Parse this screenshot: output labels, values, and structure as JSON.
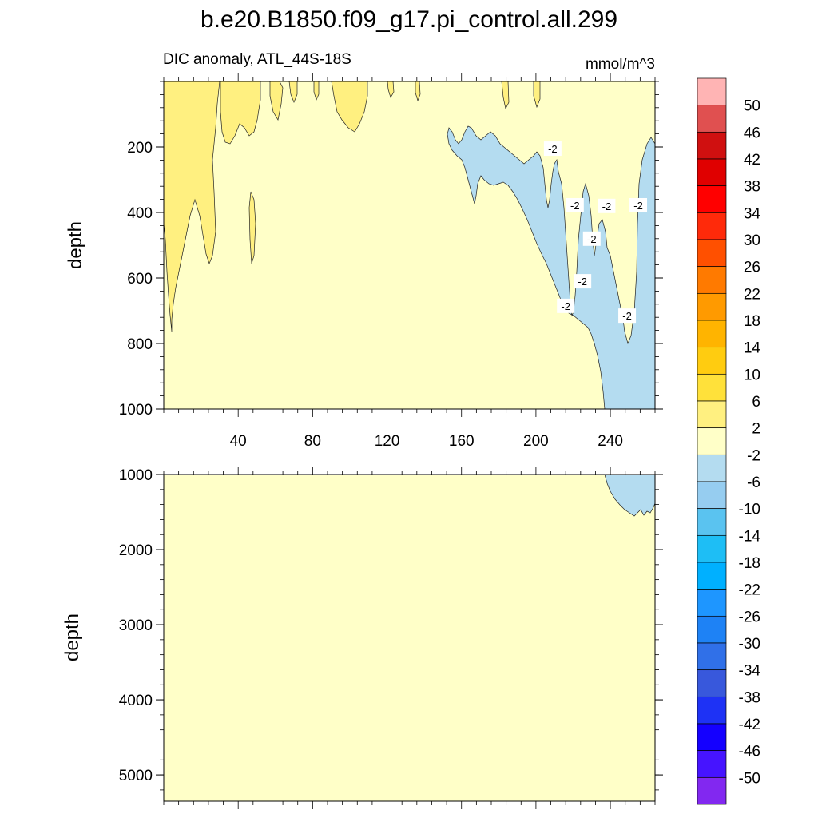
{
  "chart_data": {
    "type": "contour",
    "title": "b.e20.B1850.f09_g17.pi_control.all.299",
    "subtitle_left": "DIC anomaly, ATL_44S-18S",
    "subtitle_right": "mmol/m^3",
    "x_range": [
      0,
      264
    ],
    "panels": [
      {
        "name": "upper",
        "ylabel": "depth",
        "ylim": [
          1000,
          0
        ],
        "yticks": [
          200,
          400,
          600,
          800,
          1000
        ],
        "xticks": [
          40,
          80,
          120,
          160,
          200,
          240
        ],
        "xtick_labels": [
          "40",
          "80",
          "120",
          "160",
          "200",
          "240"
        ],
        "background_level": "-2 to 2",
        "contour_labels": [
          {
            "text": "-2",
            "x": 209,
            "y": 205
          },
          {
            "text": "-2",
            "x": 221,
            "y": 378
          },
          {
            "text": "-2",
            "x": 238,
            "y": 380
          },
          {
            "text": "-2",
            "x": 255,
            "y": 378
          },
          {
            "text": "-2",
            "x": 230,
            "y": 480
          },
          {
            "text": "-2",
            "x": 225,
            "y": 610
          },
          {
            "text": "-2",
            "x": 216,
            "y": 685
          },
          {
            "text": "-2",
            "x": 249,
            "y": 715
          }
        ]
      },
      {
        "name": "lower",
        "ylabel": "depth",
        "ylim": [
          5350,
          1000
        ],
        "yticks": [
          1000,
          2000,
          3000,
          4000,
          5000
        ],
        "xticks": [
          40,
          80,
          120,
          160,
          200,
          240
        ],
        "background_level": "-2 to 2"
      }
    ],
    "colorbar": {
      "labels": [
        "50",
        "46",
        "42",
        "38",
        "34",
        "30",
        "26",
        "22",
        "18",
        "14",
        "10",
        "6",
        "2",
        "-2",
        "-6",
        "-10",
        "-14",
        "-18",
        "-22",
        "-26",
        "-30",
        "-34",
        "-38",
        "-42",
        "-46",
        "-50"
      ],
      "colors": [
        "#ffb4b4",
        "#e05050",
        "#d01010",
        "#e00000",
        "#ff0000",
        "#ff2a0a",
        "#ff5000",
        "#ff7a00",
        "#ff9a00",
        "#ffb400",
        "#ffcc10",
        "#ffe13a",
        "#fff080",
        "#ffffc8",
        "#b4dcf0",
        "#96cdf0",
        "#5ac3f0",
        "#1ebef5",
        "#00b0ff",
        "#1e96ff",
        "#1e82f5",
        "#3070e8",
        "#3858dc",
        "#1e32f5",
        "#1400ff",
        "#4614ff",
        "#8228f0"
      ]
    },
    "fill_colors": {
      "neutral": "#ffffc8",
      "positive": "#fff080",
      "negative": "#b4dcf0"
    }
  }
}
